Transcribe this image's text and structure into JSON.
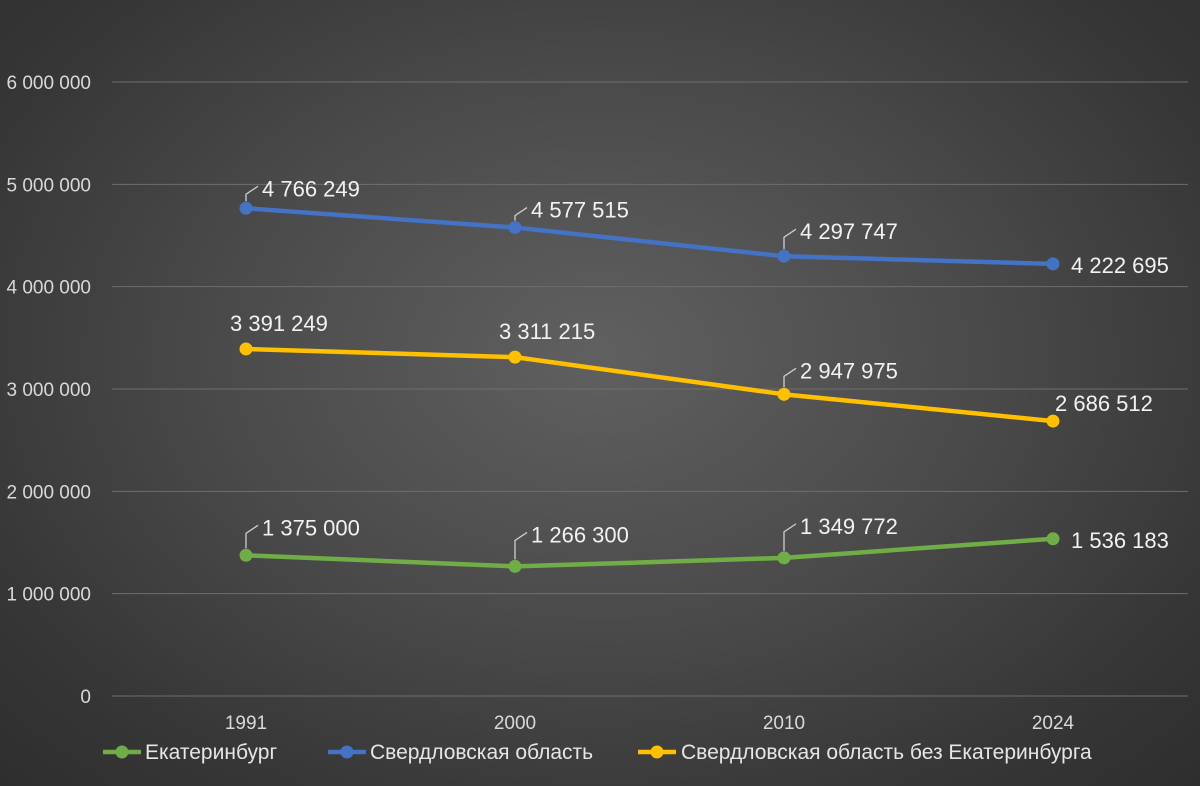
{
  "chart_data": {
    "type": "line",
    "categories": [
      "1991",
      "2000",
      "2010",
      "2024"
    ],
    "ylim": [
      0,
      6000000
    ],
    "y_ticks": [
      0,
      1000000,
      2000000,
      3000000,
      4000000,
      5000000,
      6000000
    ],
    "y_tick_labels": [
      "0",
      "1 000 000",
      "2 000 000",
      "3 000 000",
      "4 000 000",
      "5 000 000",
      "6 000 000"
    ],
    "grid": true,
    "legend_position": "bottom",
    "series": [
      {
        "name": "Екатеринбург",
        "color": "#70ad47",
        "values": [
          1375000,
          1266300,
          1349772,
          1536183
        ],
        "labels": [
          "1 375 000",
          "1 266 300",
          "1 349 772",
          "1 536 183"
        ]
      },
      {
        "name": "Свердловская область",
        "color": "#4472c4",
        "values": [
          4766249,
          4577515,
          4297747,
          4222695
        ],
        "labels": [
          "4 766 249",
          "4 577 515",
          "4 297 747",
          "4 222 695"
        ]
      },
      {
        "name": "Свердловская область без Екатеринбурга",
        "color": "#ffc000",
        "values": [
          3391249,
          3311215,
          2947975,
          2686512
        ],
        "labels": [
          "3 391 249",
          "3 311 215",
          "2 947 975",
          "2 686 512"
        ]
      }
    ]
  }
}
